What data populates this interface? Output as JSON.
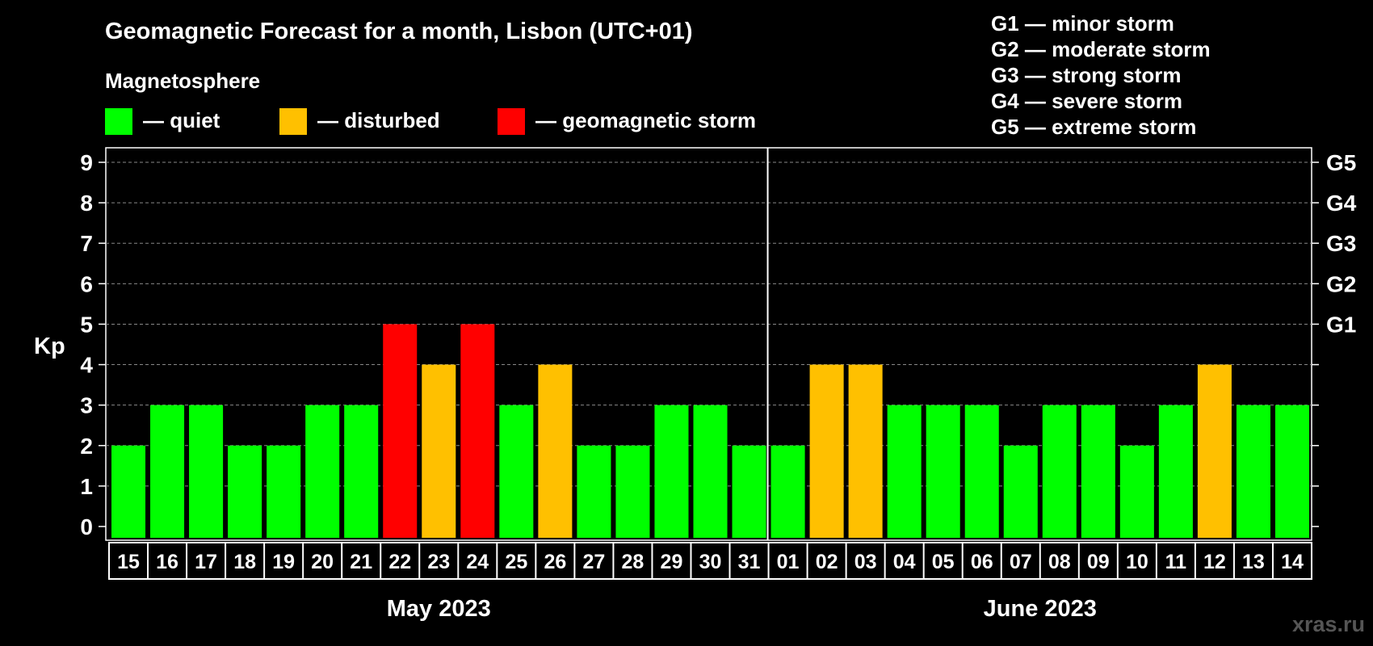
{
  "chart_data": {
    "type": "bar",
    "title": "Geomagnetic Forecast for a month, Lisbon (UTC+01)",
    "legend_title": "Magnetosphere",
    "legend": [
      {
        "label": "— quiet",
        "color": "#00ff00"
      },
      {
        "label": "— disturbed",
        "color": "#ffc000"
      },
      {
        "label": "— geomagnetic storm",
        "color": "#ff0000"
      }
    ],
    "storm_scale": [
      "G1 — minor storm",
      "G2 — moderate storm",
      "G3 — strong storm",
      "G4 — severe storm",
      "G5 — extreme storm"
    ],
    "ylabel": "Kp",
    "ylim": [
      0,
      9
    ],
    "yticks": [
      "0",
      "1",
      "2",
      "3",
      "4",
      "5",
      "6",
      "7",
      "8",
      "9"
    ],
    "right_ticks": [
      {
        "value": 5,
        "label": "G1"
      },
      {
        "value": 6,
        "label": "G2"
      },
      {
        "value": 7,
        "label": "G3"
      },
      {
        "value": 8,
        "label": "G4"
      },
      {
        "value": 9,
        "label": "G5"
      }
    ],
    "months": [
      {
        "label": "May 2023",
        "count": 17
      },
      {
        "label": "June 2023",
        "count": 14
      }
    ],
    "categories": [
      "15",
      "16",
      "17",
      "18",
      "19",
      "20",
      "21",
      "22",
      "23",
      "24",
      "25",
      "26",
      "27",
      "28",
      "29",
      "30",
      "31",
      "01",
      "02",
      "03",
      "04",
      "05",
      "06",
      "07",
      "08",
      "09",
      "10",
      "11",
      "12",
      "13",
      "14"
    ],
    "values": [
      2,
      3,
      3,
      2,
      2,
      3,
      3,
      5,
      4,
      5,
      3,
      4,
      2,
      2,
      3,
      3,
      2,
      2,
      4,
      4,
      3,
      3,
      3,
      2,
      3,
      3,
      2,
      3,
      4,
      3,
      3
    ],
    "colors": {
      "quiet": "#00ff00",
      "disturbed": "#ffc000",
      "storm": "#ff0000"
    },
    "watermark": "xras.ru"
  }
}
